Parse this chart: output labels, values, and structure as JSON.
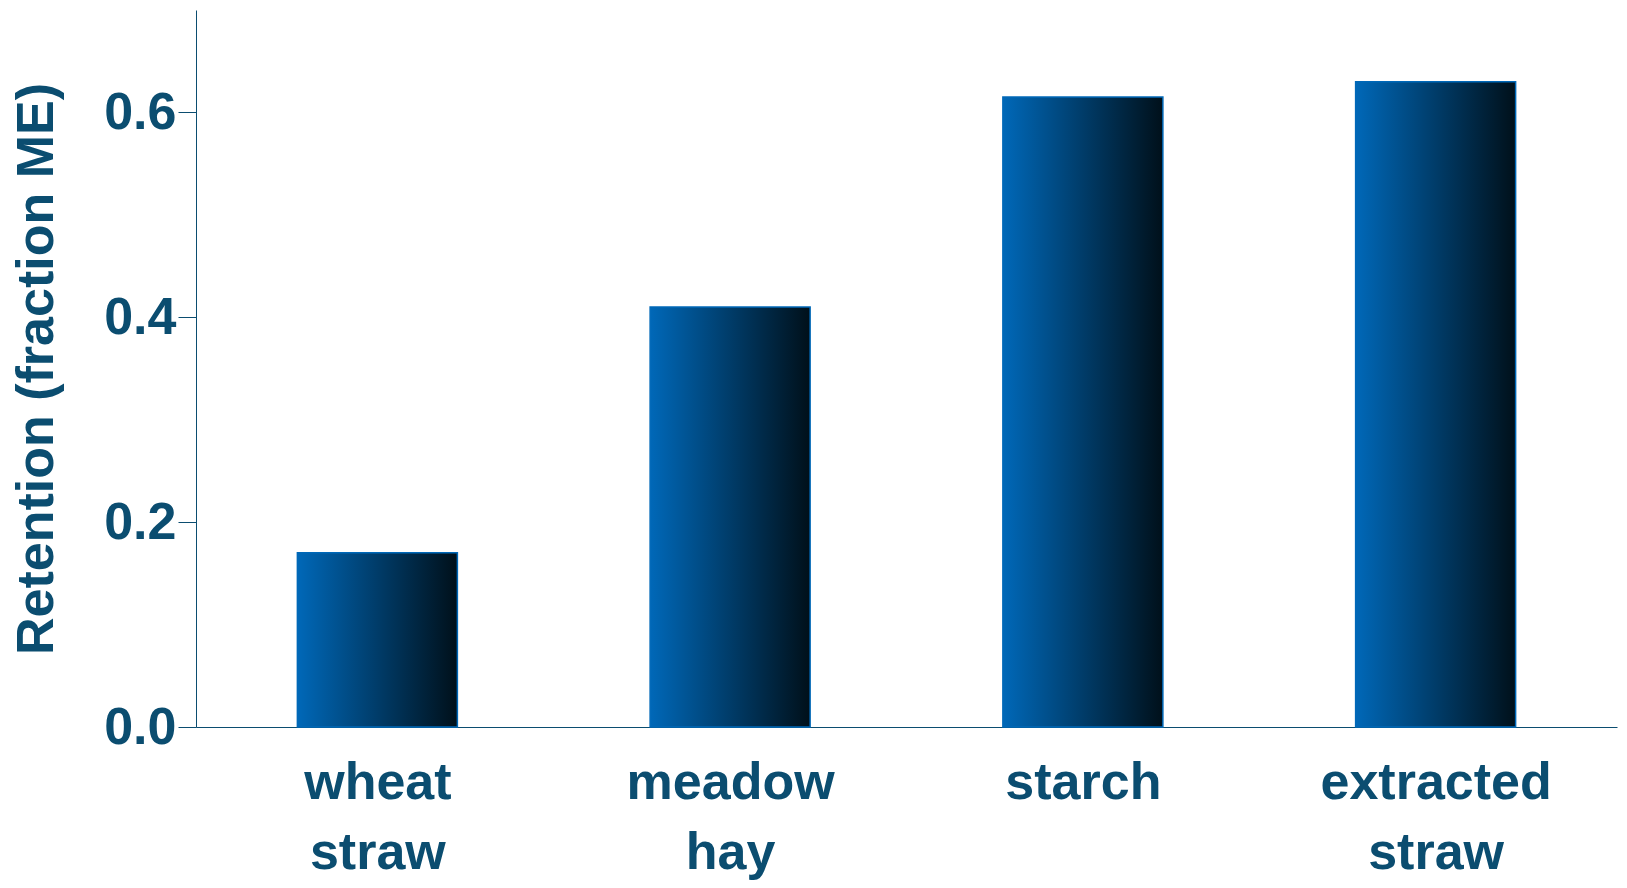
{
  "chart_data": {
    "type": "bar",
    "ylabel": "Retention (fraction ME)",
    "categories": [
      "wheat straw",
      "meadow hay",
      "starch",
      "extracted straw"
    ],
    "values": [
      0.17,
      0.41,
      0.615,
      0.63
    ],
    "color": "#0068b8",
    "ylim": [
      0,
      0.7
    ],
    "yticks": [
      {
        "value": 0,
        "label": "0.0"
      },
      {
        "value": 0.2,
        "label": "0.2"
      },
      {
        "value": 0.4,
        "label": "0.4"
      },
      {
        "value": 0.6,
        "label": "0.6"
      }
    ],
    "grid": false
  }
}
